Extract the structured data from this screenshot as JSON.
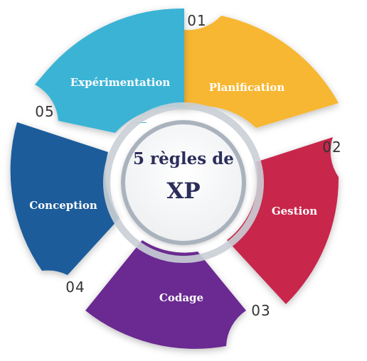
{
  "center": {
    "line1": "5 règles de",
    "line2": "XP"
  },
  "segments": [
    {
      "number": "01",
      "label": "Planification",
      "color": "#f7b733",
      "icon": "lightbulb-icon"
    },
    {
      "number": "02",
      "label": "Gestion",
      "color": "#c8254c",
      "icon": "puzzle-icon"
    },
    {
      "number": "03",
      "label": "Codage",
      "color": "#6b2c91",
      "icon": "clock-icon"
    },
    {
      "number": "04",
      "label": "Conception",
      "color": "#1a5b9a",
      "icon": "rocket-icon"
    },
    {
      "number": "05",
      "label": "Expérimentation",
      "color": "#3bb3d5",
      "icon": "briefcase-icon"
    }
  ]
}
